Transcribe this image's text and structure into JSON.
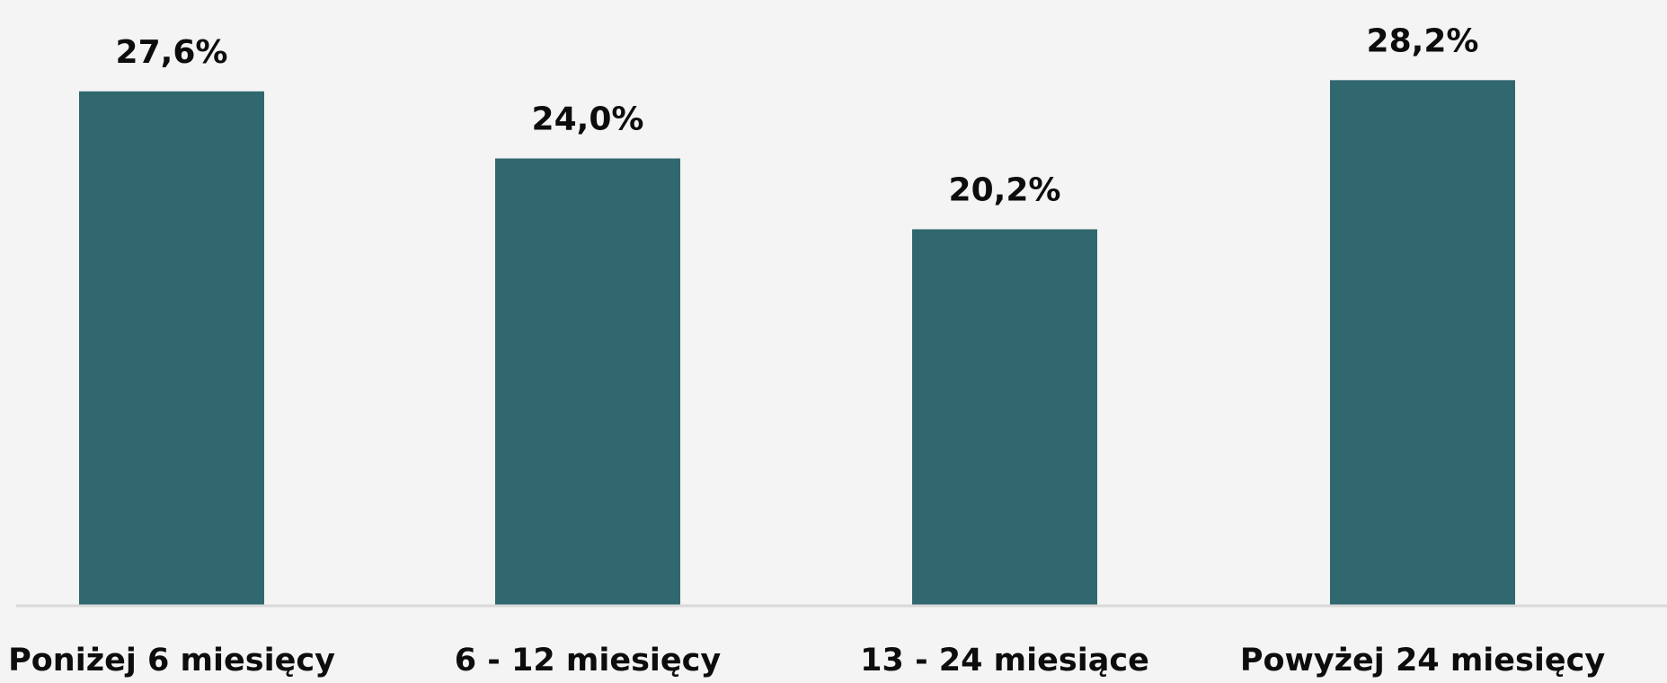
{
  "chart_data": {
    "type": "bar",
    "title": "",
    "xlabel": "",
    "ylabel": "",
    "categories": [
      "Poniżej 6 miesięcy",
      "6 - 12 miesięcy",
      "13 - 24 miesiące",
      "Powyżej 24 miesięcy"
    ],
    "values": [
      27.6,
      24.0,
      20.2,
      28.2
    ],
    "value_labels": [
      "27,6%",
      "24,0%",
      "20,2%",
      "28,2%"
    ],
    "ylim": [
      0,
      32.5
    ],
    "grid": false,
    "legend": "none",
    "bar_color": "#31676f",
    "axis_color": "#d9d9d9"
  }
}
